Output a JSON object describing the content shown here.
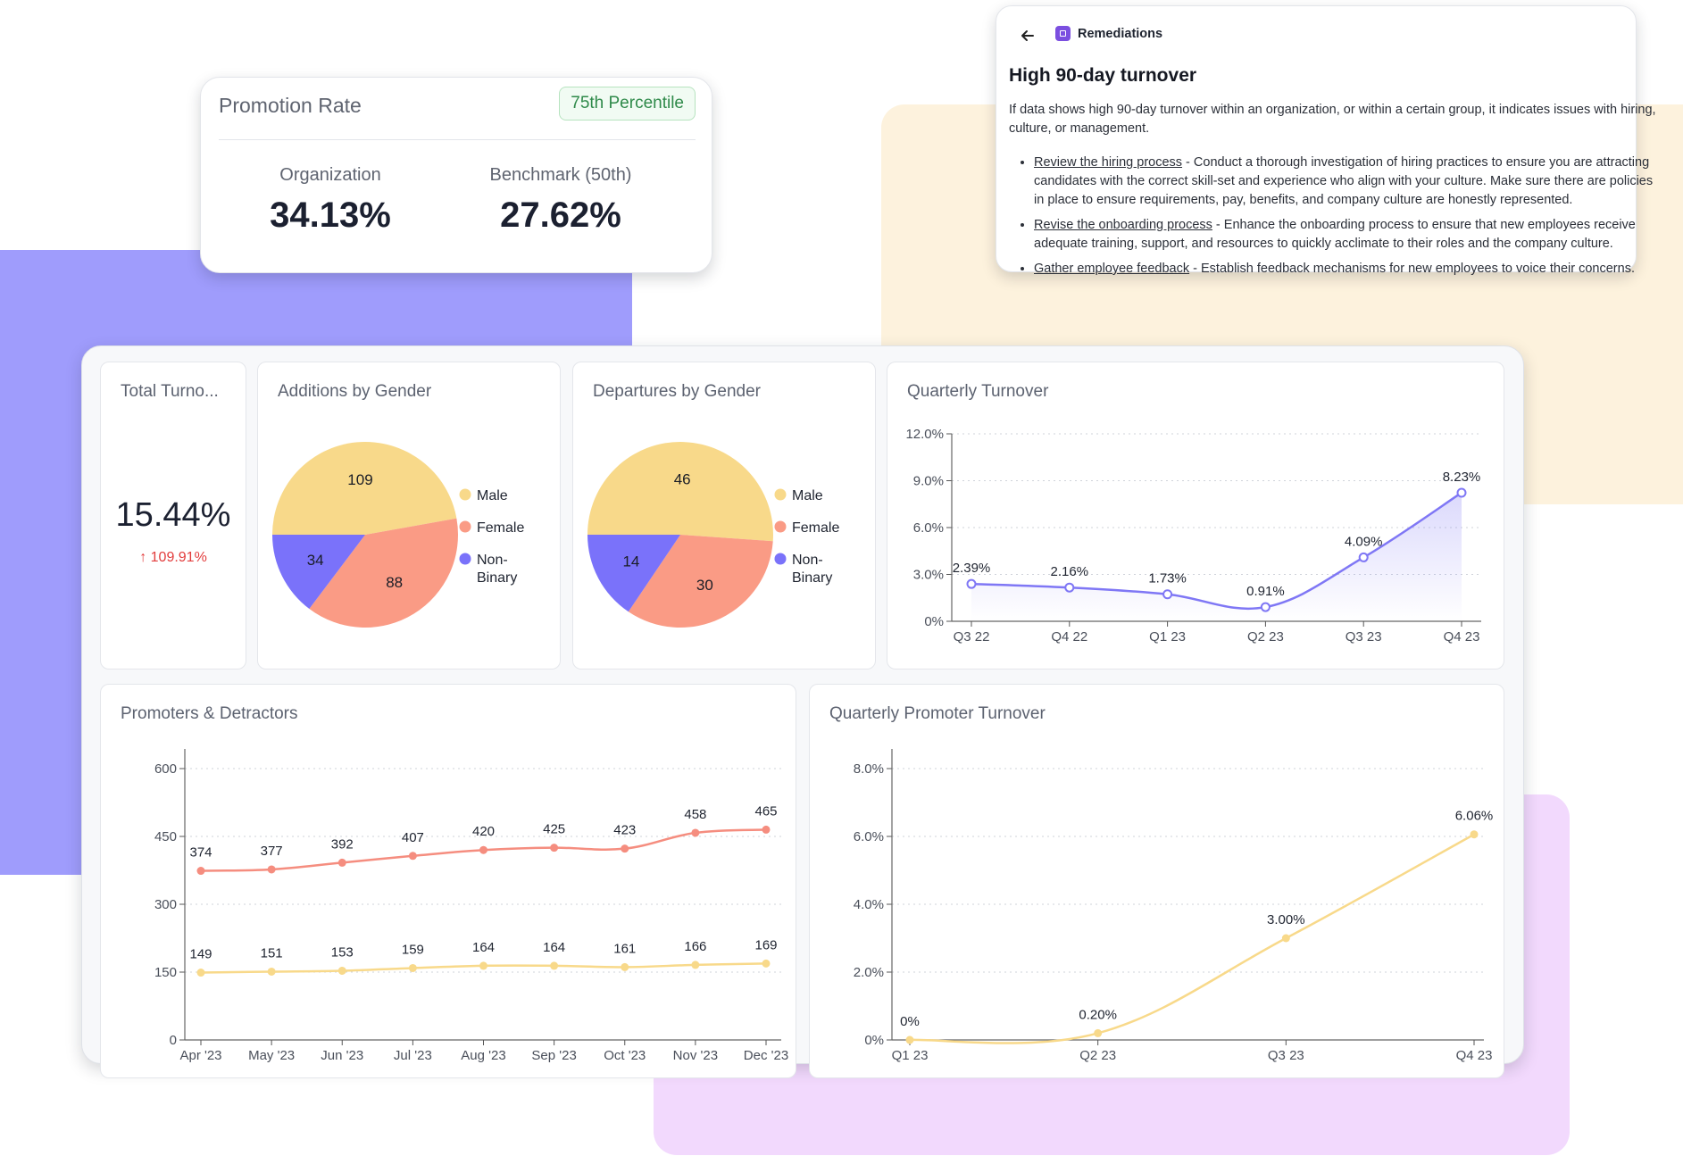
{
  "colors": {
    "purple_blob": "#9f9cfc",
    "cream_blob": "#fdf2dd",
    "lilac_blob": "#f2d9fd",
    "male": "#f8d98a",
    "female": "#fa9b85",
    "non_binary": "#7a72fa",
    "promoters_line": "#f58d7f",
    "detractors_line": "#f8d98a",
    "turnover_line": "#7f77f5",
    "badge_green": "#2f8a4a",
    "decrease_red": "#e23c3c"
  },
  "promotion": {
    "title": "Promotion Rate",
    "badge": "75th Percentile",
    "org_label": "Organization",
    "org_value": "34.13%",
    "bench_label": "Benchmark (50th)",
    "bench_value": "27.62%"
  },
  "remediations": {
    "back_icon": "arrow-left-icon",
    "category_icon": "remediations-icon",
    "label": "Remediations",
    "title": "High 90-day turnover",
    "intro": "If data shows high 90-day turnover within an organization, or within a certain group, it indicates issues with hiring, culture, or management.",
    "items": [
      {
        "link": "Review the hiring process",
        "text": " - Conduct a thorough investigation of hiring practices to ensure you are attracting candidates with the correct skill-set and experience who align with your culture. Make sure there are policies in place to ensure requirements, pay, benefits, and company culture are honestly represented."
      },
      {
        "link": "Revise the onboarding process",
        "text": " - Enhance the onboarding process to ensure that new employees receive adequate training, support, and resources to quickly acclimate to their roles and the company culture."
      },
      {
        "link": "Gather employee feedback",
        "text": " - Establish feedback mechanisms for new employees to voice their concerns."
      }
    ]
  },
  "total_turnover": {
    "title": "Total Turno...",
    "value": "15.44%",
    "change": "109.91%",
    "change_icon": "arrow-up-icon"
  },
  "additions": {
    "title": "Additions by Gender",
    "legend": [
      "Male",
      "Female",
      "Non-\nBinary"
    ]
  },
  "departures": {
    "title": "Departures by Gender",
    "legend": [
      "Male",
      "Female",
      "Non-\nBinary"
    ]
  },
  "quarterly_turnover": {
    "title": "Quarterly Turnover"
  },
  "promoters_detractors": {
    "title": "Promoters & Detractors"
  },
  "quarterly_promoter": {
    "title": "Quarterly Promoter Turnover"
  },
  "chart_data": [
    {
      "id": "additions",
      "type": "pie",
      "title": "Additions by Gender",
      "labels": [
        "Male",
        "Female",
        "Non-Binary"
      ],
      "values": [
        109,
        88,
        34
      ]
    },
    {
      "id": "departures",
      "type": "pie",
      "title": "Departures by Gender",
      "labels": [
        "Male",
        "Female",
        "Non-Binary"
      ],
      "values": [
        46,
        30,
        14
      ]
    },
    {
      "id": "quarterly_turnover",
      "type": "area",
      "title": "Quarterly Turnover",
      "categories": [
        "Q3 22",
        "Q4 22",
        "Q1 23",
        "Q2 23",
        "Q3 23",
        "Q4 23"
      ],
      "values": [
        2.39,
        2.16,
        1.73,
        0.91,
        4.09,
        8.23
      ],
      "data_labels": [
        "2.39%",
        "2.16%",
        "1.73%",
        "0.91%",
        "4.09%",
        "8.23%"
      ],
      "yticks": [
        "0%",
        "3.0%",
        "6.0%",
        "9.0%",
        "12.0%"
      ],
      "ylim": [
        0,
        12
      ],
      "grid": true
    },
    {
      "id": "promoters_detractors",
      "type": "line",
      "title": "Promoters & Detractors",
      "categories": [
        "Apr '23",
        "May '23",
        "Jun '23",
        "Jul '23",
        "Aug '23",
        "Sep '23",
        "Oct '23",
        "Nov '23",
        "Dec '23"
      ],
      "series": [
        {
          "values": [
            374,
            377,
            392,
            407,
            420,
            425,
            423,
            458,
            465
          ]
        },
        {
          "values": [
            149,
            151,
            153,
            159,
            164,
            164,
            161,
            166,
            169
          ]
        }
      ],
      "yticks": [
        "0",
        "150",
        "300",
        "450",
        "600"
      ],
      "ylim": [
        0,
        600
      ],
      "grid": true
    },
    {
      "id": "quarterly_promoter",
      "type": "line",
      "title": "Quarterly Promoter Turnover",
      "categories": [
        "Q1 23",
        "Q2 23",
        "Q3 23",
        "Q4 23"
      ],
      "values": [
        0,
        0.2,
        3.0,
        6.06
      ],
      "data_labels": [
        "0%",
        "0.20%",
        "3.00%",
        "6.06%"
      ],
      "yticks": [
        "0%",
        "2.0%",
        "4.0%",
        "6.0%",
        "8.0%"
      ],
      "ylim": [
        0,
        8
      ],
      "grid": true
    }
  ]
}
